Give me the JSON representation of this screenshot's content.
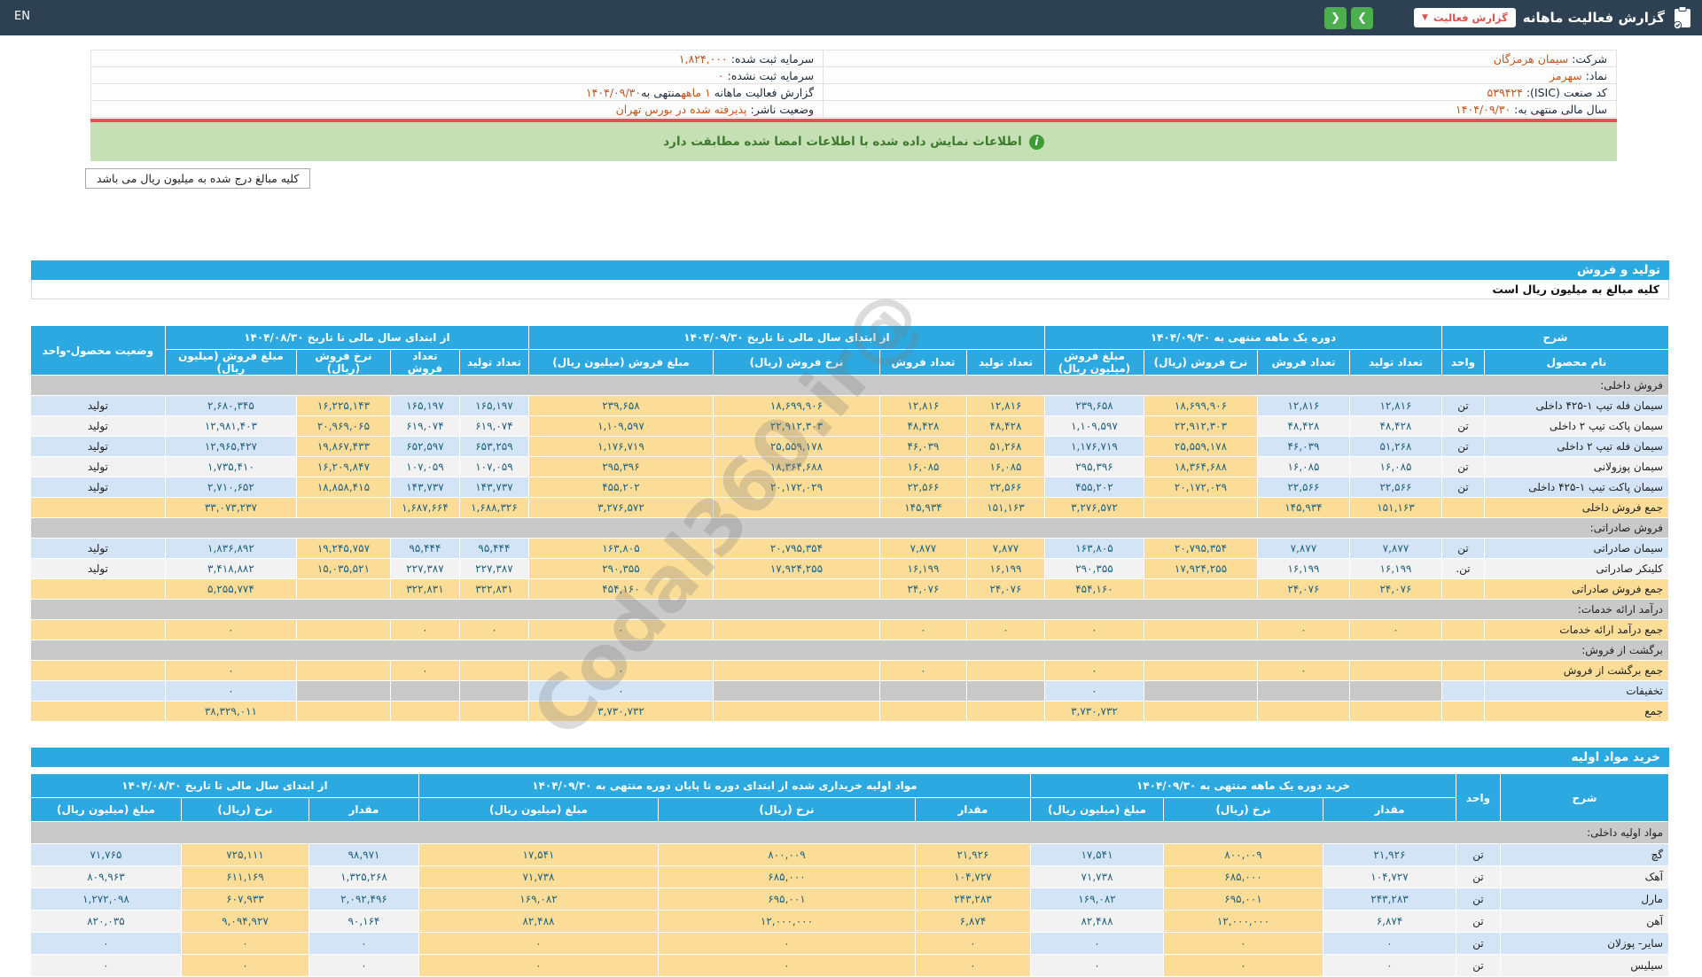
{
  "topbar": {
    "en_label": "EN",
    "title": "گزارش فعالیت ماهانه",
    "dropdown_label": "گزارش فعالیت",
    "dropdown_caret": "▼",
    "nav_forward": "❯",
    "nav_back": "❮"
  },
  "info": {
    "rows": [
      {
        "right_label": "شرکت:",
        "right_value": "سیمان هرمزگان",
        "left_label": "سرمایه ثبت شده:",
        "left_value": "۱,۸۲۴,۰۰۰"
      },
      {
        "right_label": "نماد:",
        "right_value": "سهرمز",
        "left_label": "سرمایه ثبت نشده:",
        "left_value": "۰"
      },
      {
        "right_label": "کد صنعت (ISIC):",
        "right_value": "۵۳۹۴۲۴",
        "left_label": "گزارش فعالیت ماهانه",
        "left_value": "۱ ماهه",
        "left_label2": "منتهی به",
        "left_value2": "۱۴۰۴/۰۹/۳۰"
      },
      {
        "right_label": "سال مالی منتهی به:",
        "right_value": "۱۴۰۴/۰۹/۳۰",
        "left_label": "وضعیت ناشر:",
        "left_value": "پذیرفته شده در بورس تهران"
      }
    ]
  },
  "notice": {
    "text": "اطلاعات نمایش داده شده با اطلاعات امضا شده مطابقت دارد",
    "icon": "i"
  },
  "unit_note": "کلیه مبالغ درج شده به میلیون ریال می باشد",
  "watermark": "@Codal360.ir",
  "production_sales": {
    "bar": "تولید و فروش",
    "subtitle": "کلیه مبالغ به میلیون ریال است",
    "desc_header": "شرح",
    "name_header": "نام محصول",
    "unit_header": "واحد",
    "status_header": "وضعیت محصول-واحد",
    "groups": {
      "g1": "دوره یک ماهه منتهی به ۱۴۰۴/۰۹/۳۰",
      "g2": "از ابتدای سال مالی تا تاریخ ۱۴۰۴/۰۹/۳۰",
      "g3": "از ابتدای سال مالی تا تاریخ ۱۴۰۴/۰۸/۳۰"
    },
    "cols": {
      "prod": "تعداد تولید",
      "sold": "تعداد فروش",
      "rate": "نرخ فروش (ریال)",
      "amount": "مبلغ فروش (میلیون ریال)"
    },
    "rows": [
      {
        "type": "section",
        "label": "فروش داخلی:"
      },
      {
        "type": "data",
        "name": "سیمان فله تیپ ۱-۴۲۵ داخلی",
        "unit": "تن",
        "g1": [
          "۱۲,۸۱۶",
          "۱۲,۸۱۶",
          "۱۸,۶۹۹,۹۰۶",
          "۲۳۹,۶۵۸"
        ],
        "g2": [
          "۱۲,۸۱۶",
          "۱۲,۸۱۶",
          "۱۸,۶۹۹,۹۰۶",
          "۲۳۹,۶۵۸"
        ],
        "g3": [
          "۱۶۵,۱۹۷",
          "۱۶۵,۱۹۷",
          "۱۶,۲۲۵,۱۴۳",
          "۲,۶۸۰,۳۴۵"
        ],
        "status": "تولید"
      },
      {
        "type": "data",
        "name": "سیمان پاکت تیپ ۲ داخلی",
        "unit": "تن",
        "g1": [
          "۴۸,۴۲۸",
          "۴۸,۴۲۸",
          "۲۲,۹۱۲,۳۰۳",
          "۱,۱۰۹,۵۹۷"
        ],
        "g2": [
          "۴۸,۴۲۸",
          "۴۸,۴۲۸",
          "۲۲,۹۱۲,۳۰۳",
          "۱,۱۰۹,۵۹۷"
        ],
        "g3": [
          "۶۱۹,۰۷۴",
          "۶۱۹,۰۷۴",
          "۲۰,۹۶۹,۰۶۵",
          "۱۲,۹۸۱,۴۰۳"
        ],
        "status": "تولید"
      },
      {
        "type": "data",
        "name": "سیمان فله تیپ ۲ داخلی",
        "unit": "تن",
        "g1": [
          "۵۱,۲۶۸",
          "۴۶,۰۳۹",
          "۲۵,۵۵۹,۱۷۸",
          "۱,۱۷۶,۷۱۹"
        ],
        "g2": [
          "۵۱,۲۶۸",
          "۴۶,۰۳۹",
          "۲۵,۵۵۹,۱۷۸",
          "۱,۱۷۶,۷۱۹"
        ],
        "g3": [
          "۶۵۳,۲۵۹",
          "۶۵۲,۵۹۷",
          "۱۹,۸۶۷,۴۳۳",
          "۱۲,۹۶۵,۴۲۷"
        ],
        "status": "تولید"
      },
      {
        "type": "data",
        "name": "سیمان پوزولانی",
        "unit": "تن",
        "g1": [
          "۱۶,۰۸۵",
          "۱۶,۰۸۵",
          "۱۸,۳۶۴,۶۸۸",
          "۲۹۵,۳۹۶"
        ],
        "g2": [
          "۱۶,۰۸۵",
          "۱۶,۰۸۵",
          "۱۸,۳۶۴,۶۸۸",
          "۲۹۵,۳۹۶"
        ],
        "g3": [
          "۱۰۷,۰۵۹",
          "۱۰۷,۰۵۹",
          "۱۶,۲۰۹,۸۴۷",
          "۱,۷۳۵,۴۱۰"
        ],
        "status": "تولید"
      },
      {
        "type": "data",
        "name": "سیمان پاکت تیپ ۱-۴۲۵ داخلی",
        "unit": "تن",
        "g1": [
          "۲۲,۵۶۶",
          "۲۲,۵۶۶",
          "۲۰,۱۷۲,۰۲۹",
          "۴۵۵,۲۰۲"
        ],
        "g2": [
          "۲۲,۵۶۶",
          "۲۲,۵۶۶",
          "۲۰,۱۷۲,۰۲۹",
          "۴۵۵,۲۰۲"
        ],
        "g3": [
          "۱۴۳,۷۳۷",
          "۱۴۳,۷۳۷",
          "۱۸,۸۵۸,۴۱۵",
          "۲,۷۱۰,۶۵۲"
        ],
        "status": "تولید"
      },
      {
        "type": "total",
        "name": "جمع فروش داخلی",
        "unit": "",
        "g1": [
          "۱۵۱,۱۶۳",
          "۱۴۵,۹۳۴",
          "",
          "۳,۲۷۶,۵۷۲"
        ],
        "g2": [
          "۱۵۱,۱۶۳",
          "۱۴۵,۹۳۴",
          "",
          "۳,۲۷۶,۵۷۲"
        ],
        "g3": [
          "۱,۶۸۸,۳۲۶",
          "۱,۶۸۷,۶۶۴",
          "",
          "۳۳,۰۷۳,۲۳۷"
        ],
        "status": ""
      },
      {
        "type": "section",
        "label": "فروش صادراتی:"
      },
      {
        "type": "data",
        "name": "سیمان صادراتی",
        "unit": "تن",
        "g1": [
          "۷,۸۷۷",
          "۷,۸۷۷",
          "۲۰,۷۹۵,۳۵۴",
          "۱۶۳,۸۰۵"
        ],
        "g2": [
          "۷,۸۷۷",
          "۷,۸۷۷",
          "۲۰,۷۹۵,۳۵۴",
          "۱۶۳,۸۰۵"
        ],
        "g3": [
          "۹۵,۴۴۴",
          "۹۵,۴۴۴",
          "۱۹,۲۴۵,۷۵۷",
          "۱,۸۳۶,۸۹۲"
        ],
        "status": "تولید"
      },
      {
        "type": "data",
        "name": "کلینکر صادراتی",
        "unit": "تن.",
        "g1": [
          "۱۶,۱۹۹",
          "۱۶,۱۹۹",
          "۱۷,۹۲۴,۲۵۵",
          "۲۹۰,۳۵۵"
        ],
        "g2": [
          "۱۶,۱۹۹",
          "۱۶,۱۹۹",
          "۱۷,۹۲۴,۲۵۵",
          "۲۹۰,۳۵۵"
        ],
        "g3": [
          "۲۲۷,۳۸۷",
          "۲۲۷,۳۸۷",
          "۱۵,۰۳۵,۵۲۱",
          "۳,۴۱۸,۸۸۲"
        ],
        "status": "تولید"
      },
      {
        "type": "total",
        "name": "جمع فروش صادراتی",
        "unit": "",
        "g1": [
          "۲۴,۰۷۶",
          "۲۴,۰۷۶",
          "",
          "۴۵۴,۱۶۰"
        ],
        "g2": [
          "۲۴,۰۷۶",
          "۲۴,۰۷۶",
          "",
          "۴۵۴,۱۶۰"
        ],
        "g3": [
          "۳۲۲,۸۳۱",
          "۳۲۲,۸۳۱",
          "",
          "۵,۲۵۵,۷۷۴"
        ],
        "status": ""
      },
      {
        "type": "section",
        "label": "درآمد ارائه خدمات:"
      },
      {
        "type": "total",
        "name": "جمع درآمد ارائه خدمات",
        "unit": "",
        "g1": [
          "۰",
          "۰",
          "",
          "۰"
        ],
        "g2": [
          "۰",
          "۰",
          "",
          "۰"
        ],
        "g3": [
          "۰",
          "۰",
          "",
          "۰"
        ],
        "status": ""
      },
      {
        "type": "section",
        "label": "برگشت از فروش:"
      },
      {
        "type": "total",
        "name": "جمع برگشت از فروش",
        "unit": "",
        "g1": [
          "",
          "۰",
          "",
          "۰"
        ],
        "g2": [
          "",
          "۰",
          "",
          "۰"
        ],
        "g3": [
          "",
          "۰",
          "",
          "۰"
        ],
        "status": ""
      },
      {
        "type": "discount",
        "name": "تخفیفات",
        "unit": "",
        "g1": [
          "",
          "",
          "",
          "۰"
        ],
        "g2": [
          "",
          "",
          "",
          "۰"
        ],
        "g3": [
          "",
          "",
          "",
          "۰"
        ],
        "status": ""
      },
      {
        "type": "total",
        "name": "جمع",
        "unit": "",
        "g1": [
          "",
          "",
          "",
          "۳,۷۳۰,۷۳۲"
        ],
        "g2": [
          "",
          "",
          "",
          "۳,۷۳۰,۷۳۲"
        ],
        "g3": [
          "",
          "",
          "",
          "۳۸,۳۲۹,۰۱۱"
        ],
        "status": ""
      }
    ]
  },
  "materials": {
    "bar": "خرید مواد اولیه",
    "desc_header": "شرح",
    "unit_header": "واحد",
    "groups": {
      "g1": "خرید دوره یک ماهه منتهی به ۱۴۰۴/۰۹/۳۰",
      "g2": "مواد اولیه خریداری شده از ابتدای دوره تا پایان دوره منتهی به ۱۴۰۴/۰۹/۳۰",
      "g3": "از ابتدای سال مالی تا تاریخ ۱۴۰۴/۰۸/۳۰"
    },
    "cols": {
      "qty": "مقدار",
      "rate": "نرخ (ریال)",
      "amount": "مبلغ (میلیون ریال)"
    },
    "rows": [
      {
        "type": "section",
        "label": "مواد اولیه داخلی:"
      },
      {
        "type": "data",
        "name": "گچ",
        "unit": "تن",
        "g1": [
          "۲۱,۹۲۶",
          "۸۰۰,۰۰۹",
          "۱۷,۵۴۱"
        ],
        "g2": [
          "۲۱,۹۲۶",
          "۸۰۰,۰۰۹",
          "۱۷,۵۴۱"
        ],
        "g3": [
          "۹۸,۹۷۱",
          "۷۲۵,۱۱۱",
          "۷۱,۷۶۵"
        ]
      },
      {
        "type": "data",
        "name": "آهک",
        "unit": "تن",
        "g1": [
          "۱۰۴,۷۲۷",
          "۶۸۵,۰۰۰",
          "۷۱,۷۳۸"
        ],
        "g2": [
          "۱۰۴,۷۲۷",
          "۶۸۵,۰۰۰",
          "۷۱,۷۳۸"
        ],
        "g3": [
          "۱,۳۲۵,۲۶۸",
          "۶۱۱,۱۶۹",
          "۸۰۹,۹۶۳"
        ]
      },
      {
        "type": "data",
        "name": "مارل",
        "unit": "تن",
        "g1": [
          "۲۴۳,۲۸۳",
          "۶۹۵,۰۰۱",
          "۱۶۹,۰۸۲"
        ],
        "g2": [
          "۲۴۳,۲۸۳",
          "۶۹۵,۰۰۱",
          "۱۶۹,۰۸۲"
        ],
        "g3": [
          "۲,۰۹۲,۴۹۶",
          "۶۰۷,۹۳۳",
          "۱,۲۷۲,۰۹۸"
        ]
      },
      {
        "type": "data",
        "name": "آهن",
        "unit": "تن",
        "g1": [
          "۶,۸۷۴",
          "۱۲,۰۰۰,۰۰۰",
          "۸۲,۴۸۸"
        ],
        "g2": [
          "۶,۸۷۴",
          "۱۲,۰۰۰,۰۰۰",
          "۸۲,۴۸۸"
        ],
        "g3": [
          "۹۰,۱۶۴",
          "۹,۰۹۴,۹۲۷",
          "۸۲۰,۰۳۵"
        ]
      },
      {
        "type": "data",
        "name": "سایر- پوزلان",
        "unit": "تن",
        "g1": [
          "۰",
          "۰",
          "۰"
        ],
        "g2": [
          "۰",
          "۰",
          "۰"
        ],
        "g3": [
          "۰",
          "۰",
          "۰"
        ]
      },
      {
        "type": "data",
        "name": "سیلیس",
        "unit": "تن",
        "g1": [
          "۰",
          "۰",
          "۰"
        ],
        "g2": [
          "۰",
          "۰",
          "۰"
        ],
        "g3": [
          "۰",
          "۰",
          "۰"
        ]
      }
    ]
  },
  "colors": {
    "topbar": "#2e4153",
    "accent_blue": "#2ba9e0",
    "highlight_yellow": "#fbdd98",
    "stripe_blue": "#d2e4f5",
    "stripe_white": "#f2f2f2",
    "section_gray": "#c9c9c9",
    "notice_green": "#c5e0b4",
    "alert_red": "#df5353",
    "value_orange": "#c3561c",
    "button_green": "#4cae4c",
    "danger_red": "#d9534f",
    "number_text": "#20607e"
  }
}
